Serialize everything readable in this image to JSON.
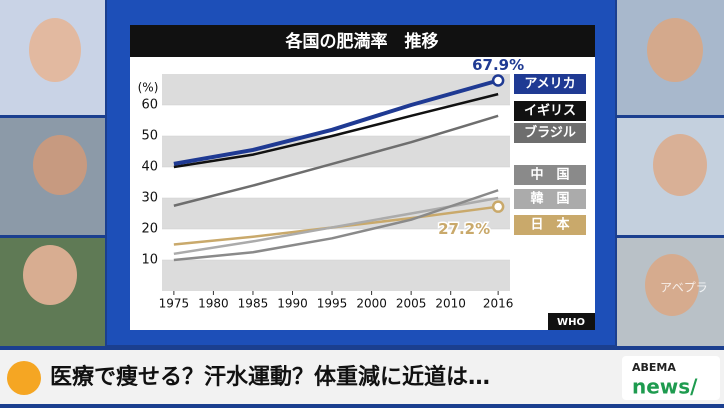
{
  "chart_data": {
    "type": "line",
    "title": "各国の肥満率　推移",
    "y_label": "(%)",
    "source": "WHO",
    "x": [
      1975,
      1985,
      1995,
      2005,
      2016
    ],
    "series": [
      {
        "name": "アメリカ",
        "color": "#1f3a93",
        "values": [
          41,
          45.5,
          52,
          60,
          67.9
        ],
        "value_labels": [
          null,
          null,
          null,
          null,
          "67.9%"
        ]
      },
      {
        "name": "イギリス",
        "color": "#111111",
        "values": [
          40,
          44,
          50,
          56.5,
          63.5
        ]
      },
      {
        "name": "ブラジル",
        "color": "#6e6e6e",
        "values": [
          27.5,
          34,
          41,
          48,
          56.5
        ]
      },
      {
        "name": "中　国",
        "color": "#8a8a8a",
        "values": [
          10,
          12.5,
          17,
          23,
          32.5
        ]
      },
      {
        "name": "韓　国",
        "color": "#ababab",
        "values": [
          12,
          16,
          20.5,
          25,
          30
        ]
      },
      {
        "name": "日　本",
        "color": "#c9a96b",
        "values": [
          15,
          17.5,
          20.5,
          23.5,
          27.2
        ],
        "value_labels": [
          null,
          null,
          null,
          null,
          "27.2%"
        ]
      }
    ],
    "xlim": [
      1973.5,
      2017.5
    ],
    "xticks": [
      1975,
      1980,
      1985,
      1990,
      1995,
      2000,
      2005,
      2010,
      2016
    ],
    "ylim": [
      0,
      70
    ],
    "yticks": [
      10,
      20,
      30,
      40,
      50,
      60
    ],
    "grid": true
  },
  "caption": "医療で痩せる？汗水運動？体重減に近道は…",
  "logo": {
    "brand": "ABEMA",
    "channel": "news/"
  },
  "watermark": "アベプラ"
}
